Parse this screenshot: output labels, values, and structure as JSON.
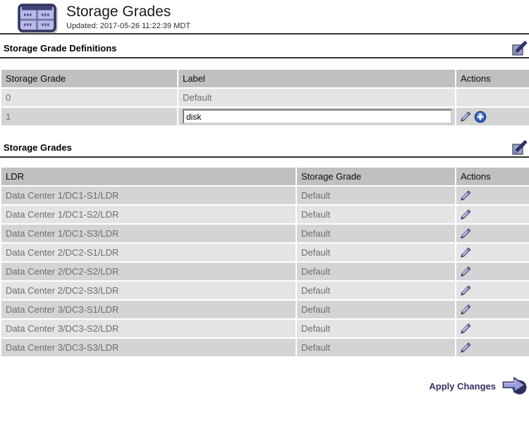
{
  "page": {
    "title": "Storage Grades",
    "updated_label": "Updated: 2017-05-26 11:22:39 MDT",
    "header_icon": "grid-icon"
  },
  "definitions": {
    "title": "Storage Grade Definitions",
    "edit_icon": "edit-section-icon",
    "columns": [
      "Storage Grade",
      "Label",
      "Actions"
    ],
    "rows": [
      {
        "grade": "0",
        "label": "Default",
        "input": false,
        "actions": []
      },
      {
        "grade": "1",
        "label": "disk",
        "input": true,
        "actions": [
          "pencil-icon",
          "plus-icon"
        ]
      }
    ]
  },
  "grades": {
    "title": "Storage Grades",
    "edit_icon": "edit-section-icon",
    "columns": [
      "LDR",
      "Storage Grade",
      "Actions"
    ],
    "rows": [
      {
        "ldr": "Data Center 1/DC1-S1/LDR",
        "grade": "Default",
        "actions": [
          "pencil-icon"
        ]
      },
      {
        "ldr": "Data Center 1/DC1-S2/LDR",
        "grade": "Default",
        "actions": [
          "pencil-icon"
        ]
      },
      {
        "ldr": "Data Center 1/DC1-S3/LDR",
        "grade": "Default",
        "actions": [
          "pencil-icon"
        ]
      },
      {
        "ldr": "Data Center 2/DC2-S1/LDR",
        "grade": "Default",
        "actions": [
          "pencil-icon"
        ]
      },
      {
        "ldr": "Data Center 2/DC2-S2/LDR",
        "grade": "Default",
        "actions": [
          "pencil-icon"
        ]
      },
      {
        "ldr": "Data Center 2/DC2-S3/LDR",
        "grade": "Default",
        "actions": [
          "pencil-icon"
        ]
      },
      {
        "ldr": "Data Center 3/DC3-S1/LDR",
        "grade": "Default",
        "actions": [
          "pencil-icon"
        ]
      },
      {
        "ldr": "Data Center 3/DC3-S2/LDR",
        "grade": "Default",
        "actions": [
          "pencil-icon"
        ]
      },
      {
        "ldr": "Data Center 3/DC3-S3/LDR",
        "grade": "Default",
        "actions": [
          "pencil-icon"
        ]
      }
    ]
  },
  "footer": {
    "apply_label": "Apply Changes",
    "apply_icon": "apply-arrow-icon"
  },
  "colors": {
    "header_row_bg": "#c0c0c0",
    "row_light_bg": "#e4e4e4",
    "row_dark_bg": "#d4d4d4",
    "cell_text": "#6e6e6e",
    "apply_text": "#333366",
    "icon_lavender": "#b9b9e6",
    "icon_navy": "#32325e",
    "plus_blue": "#2f62c0"
  }
}
